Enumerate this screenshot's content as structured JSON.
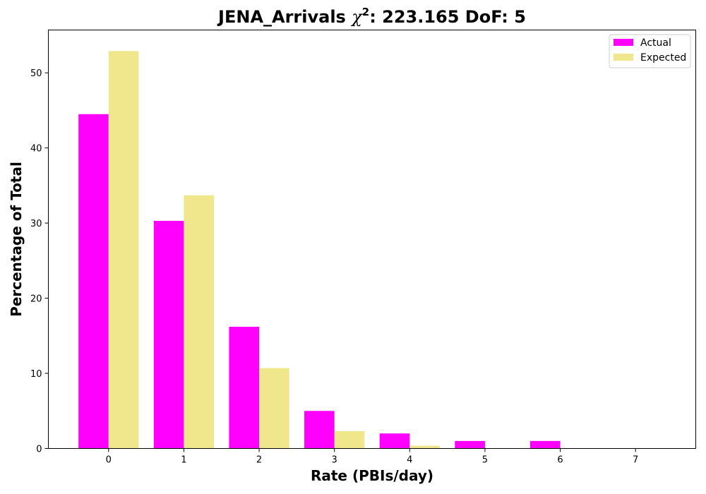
{
  "chart_data": {
    "type": "bar",
    "title_prefix": "JENA_Arrivals ",
    "title_symbol": "χ",
    "title_superscript": "2",
    "title_suffix": ": 223.165 DoF: 5",
    "xlabel": "Rate (PBIs/day)",
    "ylabel": "Percentage of Total",
    "categories": [
      "0",
      "1",
      "2",
      "3",
      "4",
      "5",
      "6",
      "7"
    ],
    "x": [
      0,
      1,
      2,
      3,
      4,
      5,
      6,
      7
    ],
    "xlim": [
      -0.8,
      7.8
    ],
    "ylim": [
      0,
      55.7
    ],
    "yticks": [
      0,
      10,
      20,
      30,
      40,
      50
    ],
    "grid": false,
    "legend_position": "top-right",
    "series": [
      {
        "name": "Actual",
        "color": "#ff00ff",
        "values": [
          44.5,
          30.3,
          16.2,
          5.0,
          2.0,
          1.0,
          1.0,
          0
        ]
      },
      {
        "name": "Expected",
        "color": "#f0e68c",
        "values": [
          52.9,
          33.7,
          10.7,
          2.3,
          0.37,
          0.05,
          0.0,
          0.0
        ]
      }
    ]
  }
}
